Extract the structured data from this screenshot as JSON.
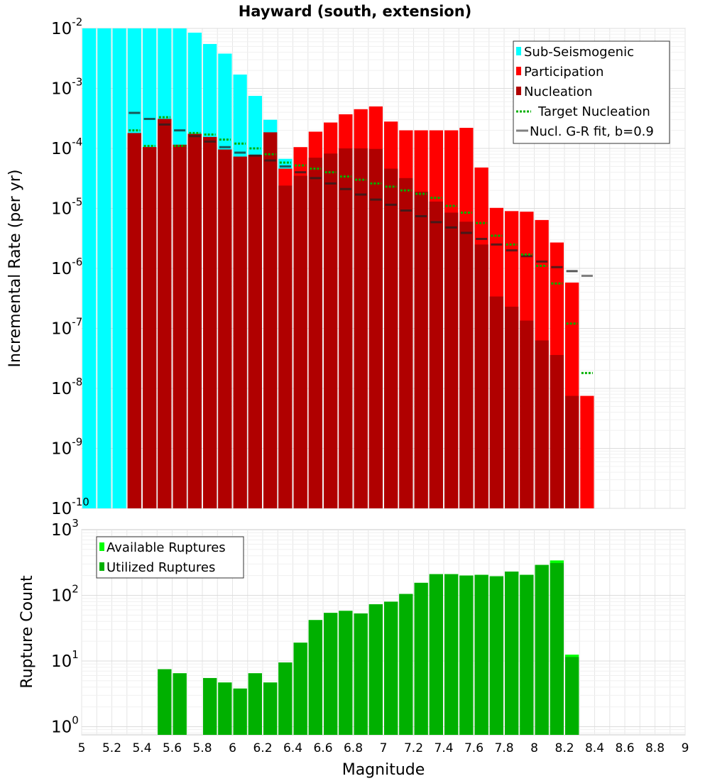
{
  "chart_data": [
    {
      "type": "bar",
      "title": "Hayward (south, extension)",
      "xlabel": "",
      "ylabel": "Incremental Rate (per yr)",
      "yscale": "log",
      "xlim": [
        5,
        9
      ],
      "ylim": [
        1e-10,
        0.01
      ],
      "ytick_labels": [
        {
          "base": "10",
          "exp": "-10"
        },
        {
          "base": "10",
          "exp": "-9"
        },
        {
          "base": "10",
          "exp": "-8"
        },
        {
          "base": "10",
          "exp": "-7"
        },
        {
          "base": "10",
          "exp": "-6"
        },
        {
          "base": "10",
          "exp": "-5"
        },
        {
          "base": "10",
          "exp": "-4"
        },
        {
          "base": "10",
          "exp": "-3"
        },
        {
          "base": "10",
          "exp": "-2"
        }
      ],
      "grid": true,
      "legend_position": "top-right",
      "colors": {
        "sub_seismogenic": "#00ffff",
        "participation": "#ff0000",
        "nucleation": "#b00000",
        "target": "#00b000",
        "gr_fit": "#808080"
      },
      "series": [
        {
          "name": "Sub-Seismogenic",
          "x": [
            5.05,
            5.15,
            5.25,
            5.35,
            5.45,
            5.55,
            5.65,
            5.75,
            5.85,
            5.95,
            6.05,
            6.15,
            6.25,
            6.35
          ],
          "values": [
            0.01,
            0.01,
            0.01,
            0.01,
            0.01,
            0.01,
            0.01,
            0.0085,
            0.0055,
            0.0038,
            0.0017,
            0.00075,
            0.0003,
            6.7e-05
          ]
        },
        {
          "name": "Participation",
          "x": [
            5.35,
            5.45,
            5.55,
            5.65,
            5.75,
            5.85,
            5.95,
            6.05,
            6.15,
            6.25,
            6.35,
            6.45,
            6.55,
            6.65,
            6.75,
            6.85,
            6.95,
            7.05,
            7.15,
            7.25,
            7.35,
            7.45,
            7.55,
            7.65,
            7.75,
            7.85,
            7.95,
            8.05,
            8.15,
            8.25,
            8.35
          ],
          "values": [
            0.00018,
            0.000105,
            0.00031,
            0.000115,
            0.000175,
            0.000155,
            9.6e-05,
            7.3e-05,
            7.8e-05,
            0.000185,
            4.6e-05,
            0.000105,
            0.00019,
            0.00027,
            0.00037,
            0.00045,
            0.0005,
            0.00028,
            0.0002,
            0.0002,
            0.0002,
            0.0002,
            0.00022,
            4.8e-05,
            1.02e-05,
            9e-06,
            8.8e-06,
            6.4e-06,
            2.7e-06,
            5.8e-07,
            7.5e-09
          ]
        },
        {
          "name": "Nucleation",
          "x": [
            5.35,
            5.45,
            5.55,
            5.65,
            5.75,
            5.85,
            5.95,
            6.05,
            6.15,
            6.25,
            6.35,
            6.45,
            6.55,
            6.65,
            6.75,
            6.85,
            6.95,
            7.05,
            7.15,
            7.25,
            7.35,
            7.45,
            7.55,
            7.65,
            7.75,
            7.85,
            7.95,
            8.05,
            8.15,
            8.25
          ],
          "values": [
            0.00018,
            0.000105,
            0.00031,
            0.000115,
            0.000175,
            0.000155,
            9.6e-05,
            7.3e-05,
            7.8e-05,
            0.000185,
            2.4e-05,
            3.5e-05,
            7e-05,
            8.2e-05,
            0.0001,
            0.0001,
            9.8e-05,
            4.6e-05,
            3.2e-05,
            1.9e-05,
            1.3e-05,
            8.5e-06,
            6e-06,
            2.5e-06,
            3.4e-07,
            2.3e-07,
            1.35e-07,
            6.3e-08,
            3.6e-08,
            7.5e-09
          ]
        },
        {
          "name": "Target Nucleation",
          "x": [
            5.35,
            5.45,
            5.55,
            5.65,
            5.75,
            5.85,
            5.95,
            6.05,
            6.15,
            6.25,
            6.35,
            6.45,
            6.55,
            6.65,
            6.75,
            6.85,
            6.95,
            7.05,
            7.15,
            7.25,
            7.35,
            7.45,
            7.55,
            7.65,
            7.75,
            7.85,
            7.95,
            8.05,
            8.15,
            8.25,
            8.35
          ],
          "values": [
            0.0002,
            0.00011,
            0.00033,
            0.00011,
            0.00018,
            0.00017,
            0.00014,
            0.00012,
            0.0001,
            8e-05,
            5.8e-05,
            5.2e-05,
            4.6e-05,
            4e-05,
            3.4e-05,
            3e-05,
            2.6e-05,
            2.3e-05,
            2e-05,
            1.75e-05,
            1.5e-05,
            1.1e-05,
            8.5e-06,
            5.7e-06,
            3.5e-06,
            2.5e-06,
            1.7e-06,
            1.1e-06,
            5.6e-07,
            1.2e-07,
            1.8e-08
          ]
        },
        {
          "name": "Nucl. G-R fit, b=0.9",
          "x": [
            5.35,
            5.45,
            5.55,
            5.65,
            5.75,
            5.85,
            5.95,
            6.05,
            6.15,
            6.25,
            6.35,
            6.45,
            6.55,
            6.65,
            6.75,
            6.85,
            6.95,
            7.05,
            7.15,
            7.25,
            7.35,
            7.45,
            7.55,
            7.65,
            7.75,
            7.85,
            7.95,
            8.05,
            8.15,
            8.25,
            8.35
          ],
          "values": [
            0.00039,
            0.00031,
            0.00025,
            0.0002,
            0.00016,
            0.00013,
            0.000105,
            8.5e-05,
            7.6e-05,
            6.3e-05,
            5e-05,
            4e-05,
            3.2e-05,
            2.6e-05,
            2.1e-05,
            1.7e-05,
            1.4e-05,
            1.15e-05,
            9.2e-06,
            7.4e-06,
            5.9e-06,
            4.8e-06,
            3.9e-06,
            3.1e-06,
            2.5e-06,
            2e-06,
            1.6e-06,
            1.3e-06,
            1.05e-06,
            9e-07,
            7.5e-07
          ]
        }
      ]
    },
    {
      "type": "bar",
      "xlabel": "Magnitude",
      "ylabel": "Rupture Count",
      "yscale": "log",
      "xlim": [
        5,
        9
      ],
      "ylim": [
        0.75,
        1000
      ],
      "xticks": [
        "5",
        "5.2",
        "5.4",
        "5.6",
        "5.8",
        "6",
        "6.2",
        "6.4",
        "6.6",
        "6.8",
        "7",
        "7.2",
        "7.4",
        "7.6",
        "7.8",
        "8",
        "8.2",
        "8.4",
        "8.6",
        "8.8",
        "9"
      ],
      "ytick_labels": [
        {
          "base": "10",
          "exp": "0"
        },
        {
          "base": "10",
          "exp": "1"
        },
        {
          "base": "10",
          "exp": "2"
        },
        {
          "base": "10",
          "exp": "3"
        }
      ],
      "grid": true,
      "legend_position": "top-left",
      "colors": {
        "available": "#00ff00",
        "utilized": "#00b000"
      },
      "series": [
        {
          "name": "Available Ruptures",
          "x": [
            5.55,
            5.65,
            5.85,
            5.95,
            6.05,
            6.15,
            6.25,
            6.35,
            6.45,
            6.55,
            6.65,
            6.75,
            6.85,
            6.95,
            7.05,
            7.15,
            7.25,
            7.35,
            7.45,
            7.55,
            7.65,
            7.75,
            7.85,
            7.95,
            8.05,
            8.15,
            8.25
          ],
          "values": [
            7.5,
            6.5,
            5.5,
            4.7,
            3.8,
            6.5,
            4.7,
            9.5,
            19,
            42,
            54,
            58,
            53,
            73,
            80,
            105,
            155,
            210,
            210,
            200,
            205,
            195,
            230,
            205,
            290,
            340,
            12.5
          ]
        },
        {
          "name": "Utilized Ruptures",
          "x": [
            5.55,
            5.65,
            5.85,
            5.95,
            6.05,
            6.15,
            6.25,
            6.35,
            6.45,
            6.55,
            6.65,
            6.75,
            6.85,
            6.95,
            7.05,
            7.15,
            7.25,
            7.35,
            7.45,
            7.55,
            7.65,
            7.75,
            7.85,
            7.95,
            8.05,
            8.15,
            8.25
          ],
          "values": [
            7.5,
            6.5,
            5.5,
            4.7,
            3.8,
            6.5,
            4.7,
            9.5,
            19,
            42,
            54,
            58,
            53,
            73,
            80,
            105,
            155,
            210,
            210,
            200,
            205,
            195,
            230,
            205,
            290,
            310,
            11.5
          ]
        }
      ]
    }
  ]
}
